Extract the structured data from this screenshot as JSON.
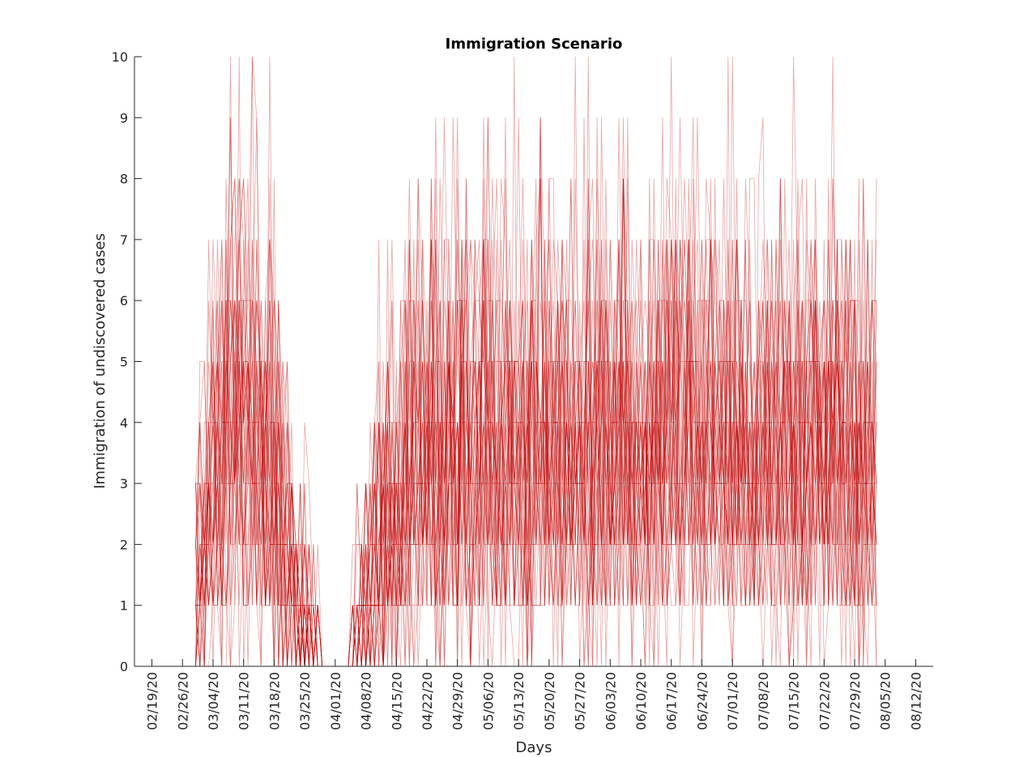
{
  "chart_data": {
    "type": "line",
    "title": "Immigration Scenario",
    "xlabel": "Days",
    "ylabel": "Immigration of undiscovered cases",
    "ylim": [
      0,
      10
    ],
    "yticks": [
      0,
      1,
      2,
      3,
      4,
      5,
      6,
      7,
      8,
      9,
      10
    ],
    "xticks": [
      "02/19/20",
      "02/26/20",
      "03/04/20",
      "03/11/20",
      "03/18/20",
      "03/25/20",
      "04/01/20",
      "04/08/20",
      "04/15/20",
      "04/22/20",
      "04/29/20",
      "05/06/20",
      "05/13/20",
      "05/20/20",
      "05/27/20",
      "06/03/20",
      "06/10/20",
      "06/17/20",
      "06/24/20",
      "07/01/20",
      "07/08/20",
      "07/15/20",
      "07/22/20",
      "07/29/20",
      "08/05/20",
      "08/12/20"
    ],
    "xlim": [
      "02/15/20",
      "08/16/20"
    ],
    "grid": false,
    "legend": "none",
    "series_color": "#c00000",
    "simulation": {
      "description": "ensemble of many overlapping simulated trajectories",
      "day_range": [
        "02/29/20",
        "08/03/20"
      ],
      "mean_profile": [
        {
          "date": "02/29/20",
          "mean": 1.2
        },
        {
          "date": "03/04/20",
          "mean": 3.0
        },
        {
          "date": "03/11/20",
          "mean": 4.5
        },
        {
          "date": "03/18/20",
          "mean": 3.0
        },
        {
          "date": "03/24/20",
          "mean": 1.0
        },
        {
          "date": "03/28/20",
          "mean": 0.2
        },
        {
          "date": "03/29/20",
          "mean": 0.0
        },
        {
          "date": "04/04/20",
          "mean": 0.0
        },
        {
          "date": "04/06/20",
          "mean": 0.5
        },
        {
          "date": "04/10/20",
          "mean": 1.5
        },
        {
          "date": "04/15/20",
          "mean": 2.8
        },
        {
          "date": "04/22/20",
          "mean": 3.4
        },
        {
          "date": "05/06/20",
          "mean": 3.6
        },
        {
          "date": "08/03/20",
          "mean": 3.6
        }
      ]
    }
  }
}
